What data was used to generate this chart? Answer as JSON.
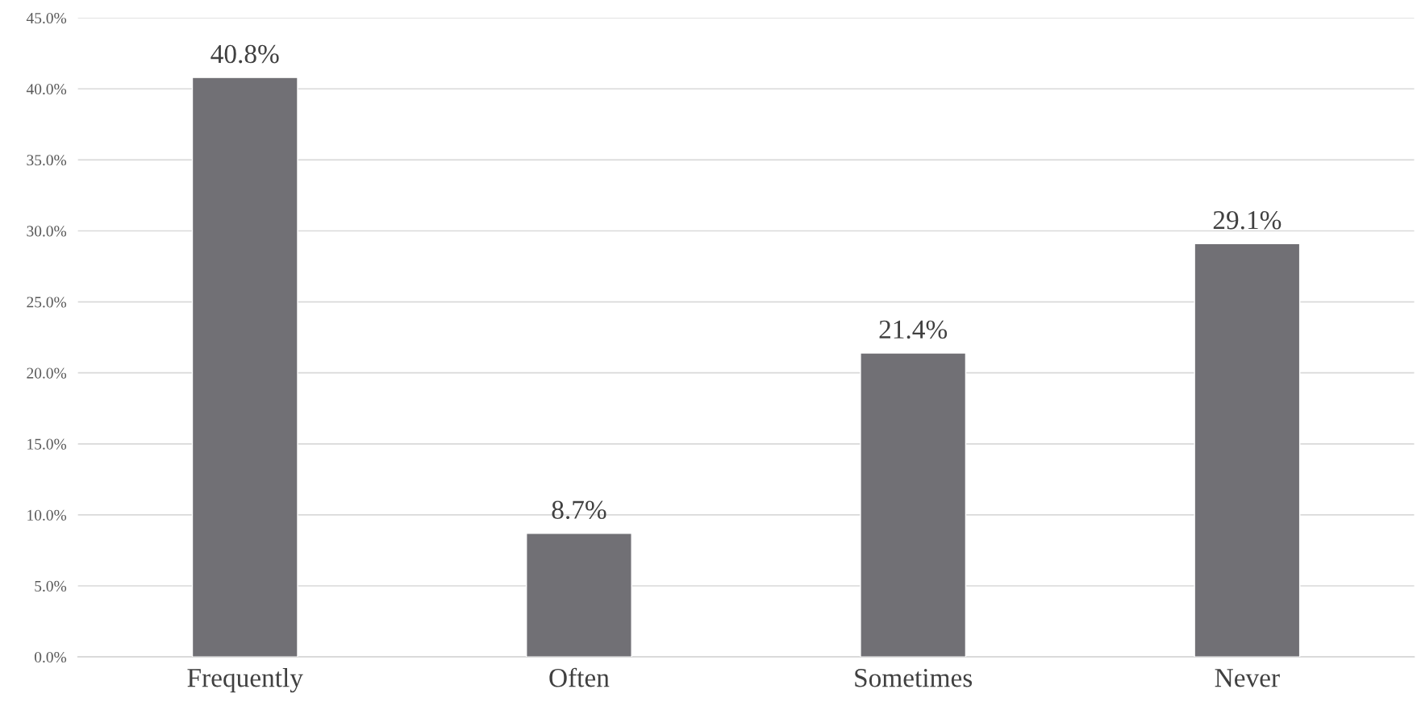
{
  "chart_data": {
    "type": "bar",
    "categories": [
      "Frequently",
      "Often",
      "Sometimes",
      "Never"
    ],
    "values": [
      40.8,
      8.7,
      21.4,
      29.1
    ],
    "value_labels": [
      "40.8%",
      "8.7%",
      "21.4%",
      "29.1%"
    ],
    "color": "#717075",
    "ylim": [
      0,
      45
    ],
    "yticks": [
      {
        "value": 0,
        "label": "0.0%"
      },
      {
        "value": 5,
        "label": "5.0%"
      },
      {
        "value": 10,
        "label": "10.0%"
      },
      {
        "value": 15,
        "label": "15.0%"
      },
      {
        "value": 20,
        "label": "20.0%"
      },
      {
        "value": 25,
        "label": "25.0%"
      },
      {
        "value": 30,
        "label": "30.0%"
      },
      {
        "value": 35,
        "label": "35.0%"
      },
      {
        "value": 40,
        "label": "40.0%"
      },
      {
        "value": 45,
        "label": "45.0%"
      }
    ],
    "grid": "y"
  }
}
